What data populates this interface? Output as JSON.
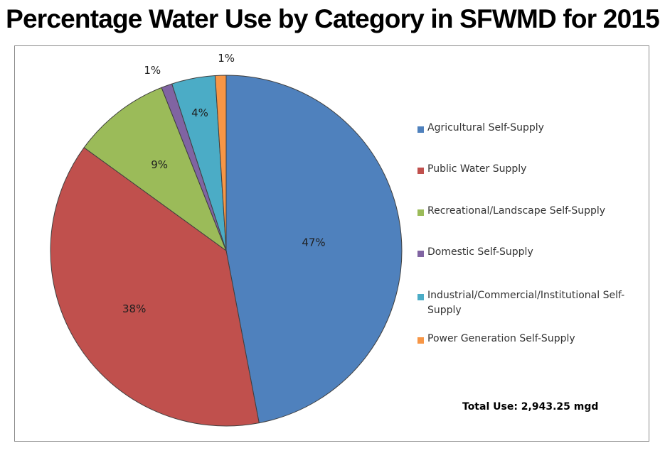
{
  "title": "Percentage Water Use by Category in SFWMD for 2015",
  "total_label": "Total Use: 2,943.25 mgd",
  "chart_data": {
    "type": "pie",
    "title": "Percentage Water Use by Category in SFWMD for 2015",
    "legend_position": "right",
    "unit": "%",
    "slices": [
      {
        "name": "Agricultural Self-Supply",
        "value": 47,
        "label": "47%",
        "color": "#4F81BD"
      },
      {
        "name": "Public Water Supply",
        "value": 38,
        "label": "38%",
        "color": "#C0504D"
      },
      {
        "name": "Recreational/Landscape Self-Supply",
        "value": 9,
        "label": "9%",
        "color": "#9BBB59"
      },
      {
        "name": "Domestic Self-Supply",
        "value": 1,
        "label": "1%",
        "color": "#8064A2"
      },
      {
        "name": "Industrial/Commercial/Institutional Self-Supply",
        "value": 4,
        "label": "4%",
        "color": "#4BACC6"
      },
      {
        "name": "Power Generation Self-Supply",
        "value": 1,
        "label": "1%",
        "color": "#F79646"
      }
    ]
  }
}
